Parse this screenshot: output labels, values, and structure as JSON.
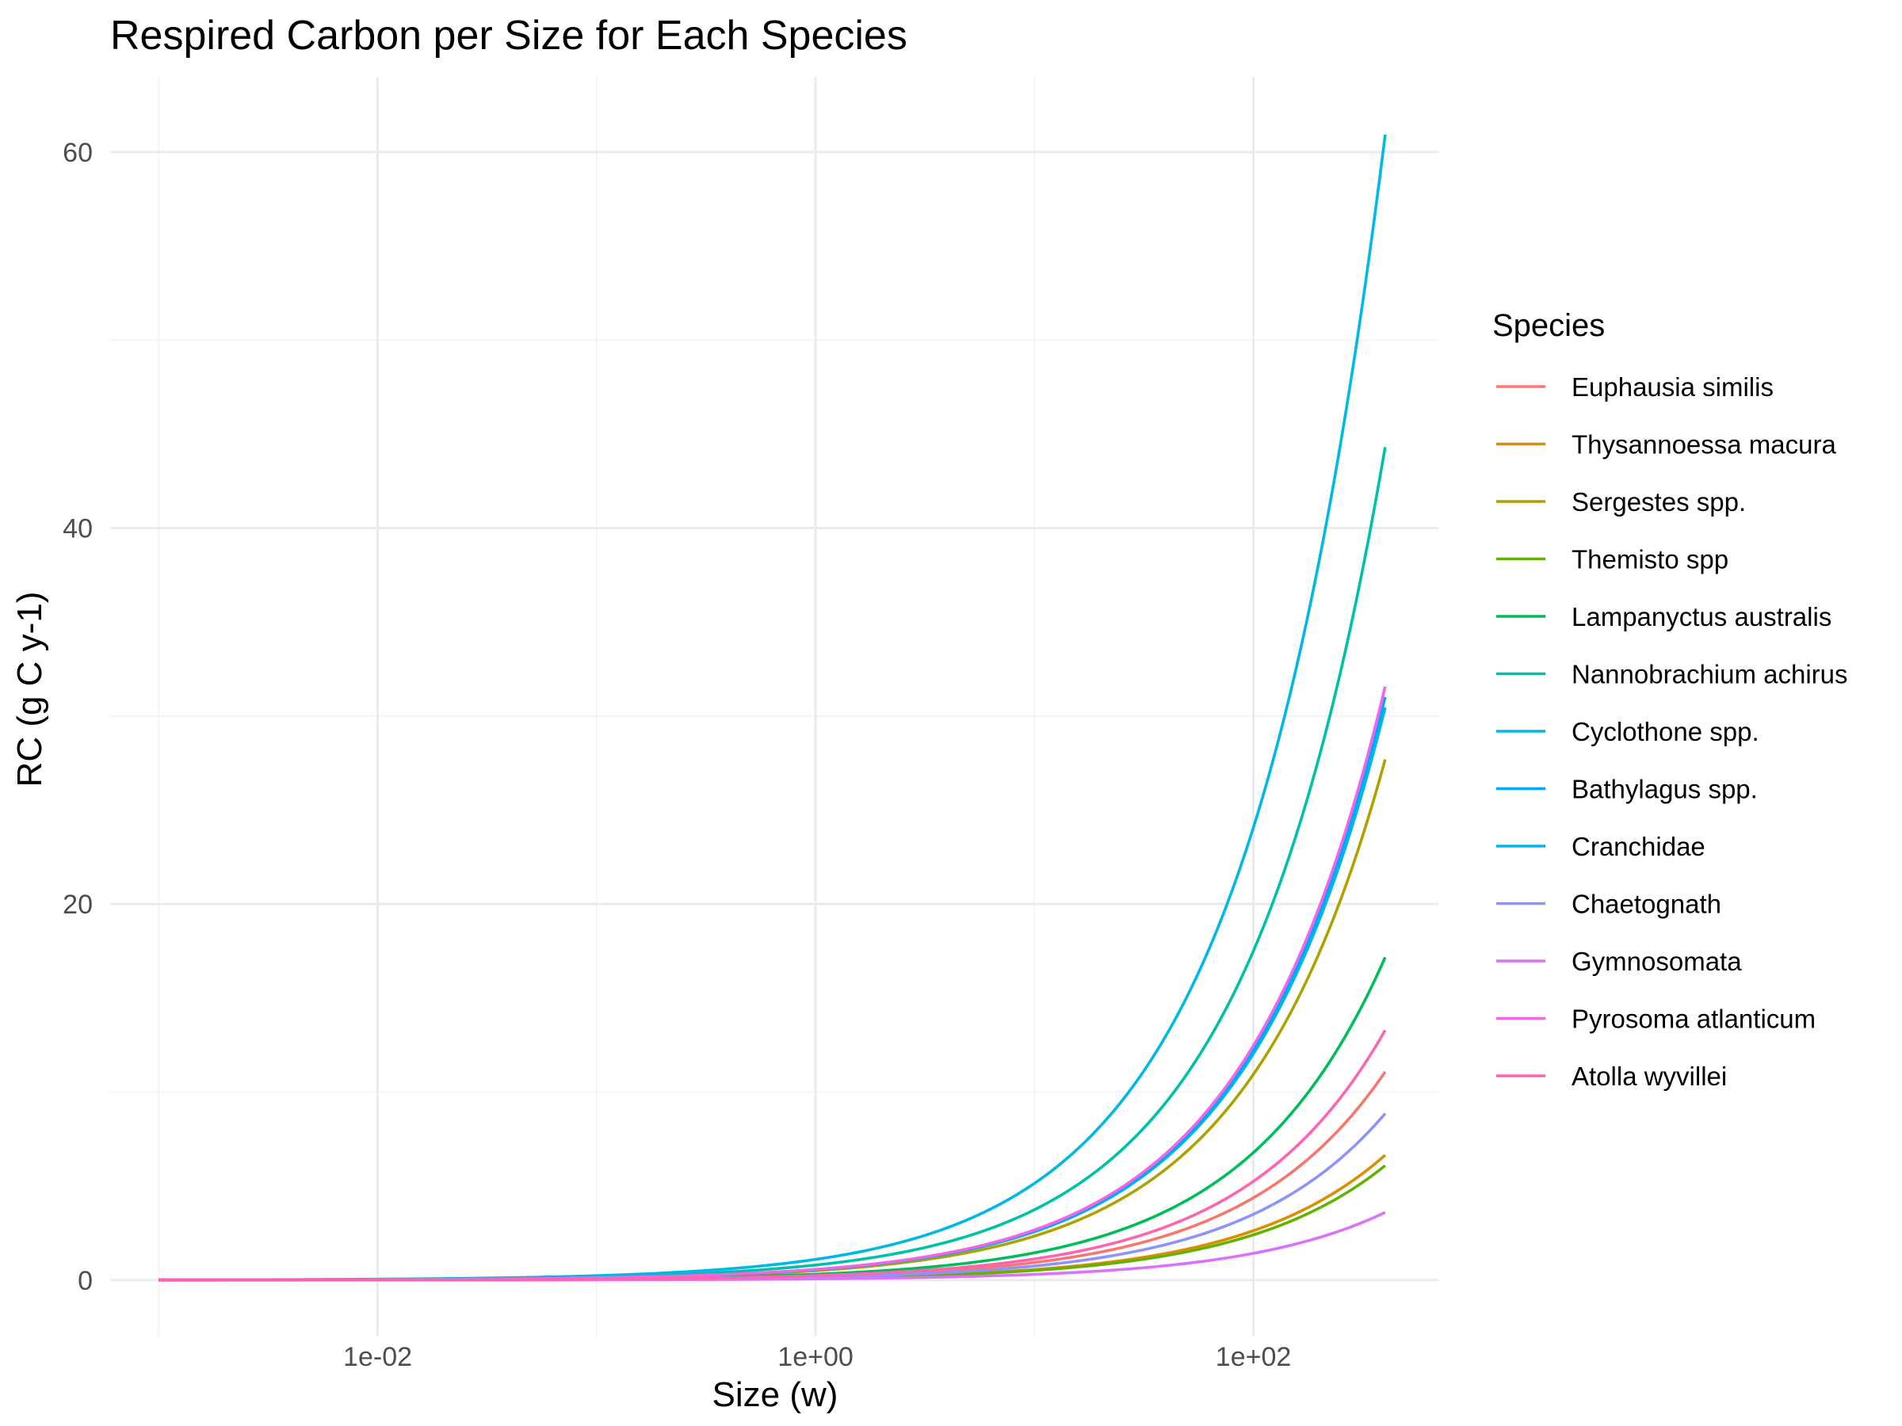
{
  "chart_data": {
    "type": "line",
    "title": "Respired Carbon per Size for Each Species",
    "xlabel": "Size (w)",
    "ylabel": "RC (g C y-1)",
    "x_scale": "log10",
    "xlim": [
      0.0006,
      700
    ],
    "ylim": [
      -3,
      64
    ],
    "x_ticks": [
      {
        "value": 0.01,
        "label": "1e-02"
      },
      {
        "value": 1,
        "label": "1e+00"
      },
      {
        "value": 100,
        "label": "1e+02"
      }
    ],
    "x_minor_ticks": [
      0.001,
      0.1,
      10
    ],
    "y_ticks": [
      {
        "value": 0,
        "label": "0"
      },
      {
        "value": 20,
        "label": "20"
      },
      {
        "value": 40,
        "label": "40"
      },
      {
        "value": 60,
        "label": "60"
      }
    ],
    "y_minor_ticks": [
      10,
      30,
      50
    ],
    "grid": true,
    "legend": {
      "title": "Species",
      "position": "right"
    },
    "x_range": [
      0.001,
      400
    ],
    "series": [
      {
        "name": "Euphausia similis",
        "color": "#F8766D",
        "coef": 0.2,
        "exponent": 0.67,
        "y_end": 11.0
      },
      {
        "name": "Thysannoessa macura",
        "color": "#DB8E00",
        "coef": 0.12,
        "exponent": 0.67,
        "y_end": 6.6
      },
      {
        "name": "Sergestes spp.",
        "color": "#AEA200",
        "coef": 0.5,
        "exponent": 0.67,
        "y_end": 27.5
      },
      {
        "name": "Themisto spp",
        "color": "#64B200",
        "coef": 0.11,
        "exponent": 0.67,
        "y_end": 6.0
      },
      {
        "name": "Lampanyctus australis",
        "color": "#00BD5C",
        "coef": 0.31,
        "exponent": 0.67,
        "y_end": 17.1
      },
      {
        "name": "Nannobrachium achirus",
        "color": "#00C1A7",
        "coef": 0.8,
        "exponent": 0.67,
        "y_end": 43.9
      },
      {
        "name": "Cyclothone spp.",
        "color": "#00BADE",
        "coef": 0.55,
        "exponent": 0.67,
        "y_end": 30.3
      },
      {
        "name": "Bathylagus spp.",
        "color": "#00A6FF",
        "coef": 0.56,
        "exponent": 0.67,
        "y_end": 30.7
      },
      {
        "name": "Cranchidae",
        "color": "#00B8E5",
        "coef": 1.1,
        "exponent": 0.67,
        "y_end": 61.0
      },
      {
        "name": "Chaetognath",
        "color": "#8C93FF",
        "coef": 0.16,
        "exponent": 0.67,
        "y_end": 8.9
      },
      {
        "name": "Gymnosomata",
        "color": "#DC71FA",
        "coef": 0.065,
        "exponent": 0.67,
        "y_end": 3.5
      },
      {
        "name": "Pyrosoma atlanticum",
        "color": "#F564E3",
        "coef": 0.57,
        "exponent": 0.67,
        "y_end": 31.3
      },
      {
        "name": "Atolla wyvillei",
        "color": "#FF64B0",
        "coef": 0.24,
        "exponent": 0.67,
        "y_end": 13.3
      }
    ]
  }
}
